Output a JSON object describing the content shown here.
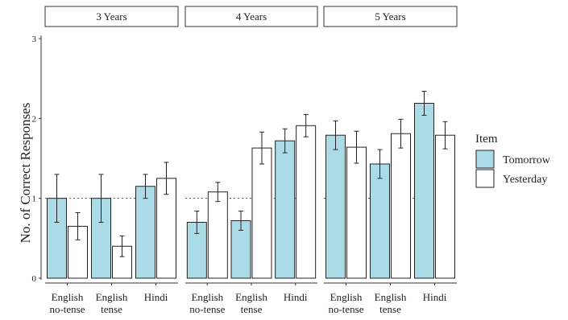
{
  "chart_data": {
    "type": "bar",
    "ylabel": "No. of Correct Responses",
    "xlabel": "",
    "ylim": [
      0,
      3
    ],
    "yticks": [
      0,
      1,
      2,
      3
    ],
    "reference_line": 1,
    "legend": {
      "title": "Item",
      "position": "right",
      "entries": [
        {
          "name": "Tomorrow",
          "color": "#aadbe7"
        },
        {
          "name": "Yesterday",
          "color": "#ffffff"
        }
      ]
    },
    "panels": [
      {
        "title": "3 Years",
        "categories": [
          {
            "label": [
              "English",
              "no-tense"
            ],
            "values": [
              1.0,
              0.65
            ],
            "errors": [
              0.3,
              0.17
            ]
          },
          {
            "label": [
              "English",
              "tense"
            ],
            "values": [
              1.0,
              0.4
            ],
            "errors": [
              0.3,
              0.13
            ]
          },
          {
            "label": [
              "Hindi"
            ],
            "values": [
              1.15,
              1.25
            ],
            "errors": [
              0.15,
              0.2
            ]
          }
        ]
      },
      {
        "title": "4 Years",
        "categories": [
          {
            "label": [
              "English",
              "no-tense"
            ],
            "values": [
              0.7,
              1.08
            ],
            "errors": [
              0.14,
              0.12
            ]
          },
          {
            "label": [
              "English",
              "tense"
            ],
            "values": [
              0.72,
              1.63
            ],
            "errors": [
              0.12,
              0.2
            ]
          },
          {
            "label": [
              "Hindi"
            ],
            "values": [
              1.72,
              1.91
            ],
            "errors": [
              0.15,
              0.14
            ]
          }
        ]
      },
      {
        "title": "5 Years",
        "categories": [
          {
            "label": [
              "English",
              "no-tense"
            ],
            "values": [
              1.79,
              1.64
            ],
            "errors": [
              0.18,
              0.2
            ]
          },
          {
            "label": [
              "English",
              "tense"
            ],
            "values": [
              1.43,
              1.81
            ],
            "errors": [
              0.18,
              0.18
            ]
          },
          {
            "label": [
              "Hindi"
            ],
            "values": [
              2.19,
              1.79
            ],
            "errors": [
              0.15,
              0.17
            ]
          }
        ]
      }
    ]
  }
}
